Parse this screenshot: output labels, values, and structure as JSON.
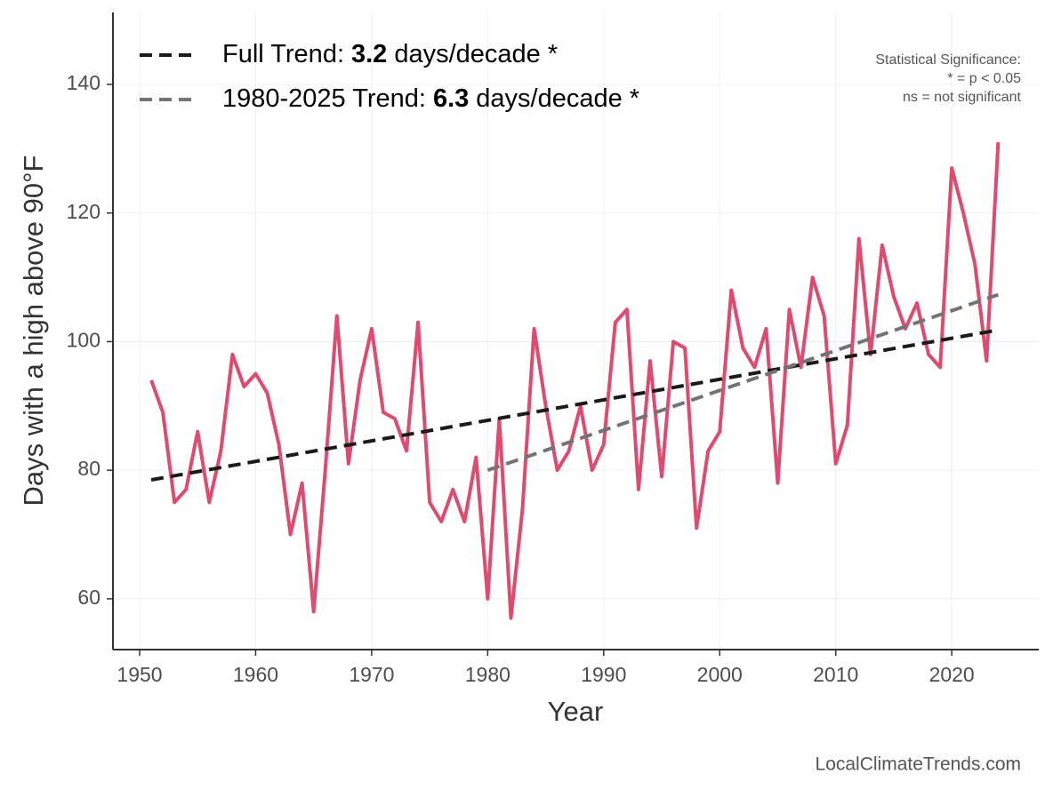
{
  "chart_data": {
    "type": "line",
    "ylabel": "Days with a high above 90°F",
    "xlabel": "Year",
    "x": [
      1951,
      1952,
      1953,
      1954,
      1955,
      1956,
      1957,
      1958,
      1959,
      1960,
      1961,
      1962,
      1963,
      1964,
      1965,
      1966,
      1967,
      1968,
      1969,
      1970,
      1971,
      1972,
      1973,
      1974,
      1975,
      1976,
      1977,
      1978,
      1979,
      1980,
      1981,
      1982,
      1983,
      1984,
      1985,
      1986,
      1987,
      1988,
      1989,
      1990,
      1991,
      1992,
      1993,
      1994,
      1995,
      1996,
      1997,
      1998,
      1999,
      2000,
      2001,
      2002,
      2003,
      2004,
      2005,
      2006,
      2007,
      2008,
      2009,
      2010,
      2011,
      2012,
      2013,
      2014,
      2015,
      2016,
      2017,
      2018,
      2019,
      2020,
      2021,
      2022,
      2023,
      2024
    ],
    "series": [
      {
        "color": "#e04a6e",
        "values": [
          94,
          89,
          75,
          77,
          86,
          75,
          83,
          98,
          93,
          95,
          92,
          84,
          70,
          78,
          58,
          80,
          104,
          81,
          94,
          102,
          89,
          88,
          83,
          103,
          75,
          72,
          77,
          72,
          82,
          60,
          88,
          57,
          74,
          102,
          90,
          80,
          83,
          90,
          80,
          84,
          103,
          105,
          77,
          97,
          79,
          100,
          99,
          71,
          83,
          86,
          108,
          99,
          96,
          102,
          78,
          105,
          96,
          110,
          104,
          81,
          87,
          116,
          98,
          115,
          107,
          102,
          106,
          98,
          96,
          127,
          120,
          112,
          97,
          131
        ]
      }
    ],
    "trends": [
      {
        "text": "Full Trend:",
        "slope": 3.2,
        "unit": "days/decade *",
        "color": "#1a1a1a",
        "x": [
          1951,
          2024
        ],
        "values": [
          78.5,
          101.8
        ]
      },
      {
        "text": "1980-2025 Trend:",
        "slope": 6.3,
        "unit": "days/decade *",
        "color": "#737373",
        "x": [
          1980,
          2024
        ],
        "values": [
          80,
          107.3
        ]
      }
    ],
    "annotation": [
      "Statistical Significance:",
      "* = p < 0.05",
      "ns = not significant"
    ],
    "source": "LocalClimateTrends.com",
    "xlim": [
      1947.7,
      2027.5
    ],
    "ylim": [
      52.1,
      151.2
    ],
    "xticks": [
      1950,
      1960,
      1970,
      1980,
      1990,
      2000,
      2010,
      2020
    ],
    "yticks": [
      60,
      80,
      100,
      120,
      140
    ],
    "grid": true
  }
}
